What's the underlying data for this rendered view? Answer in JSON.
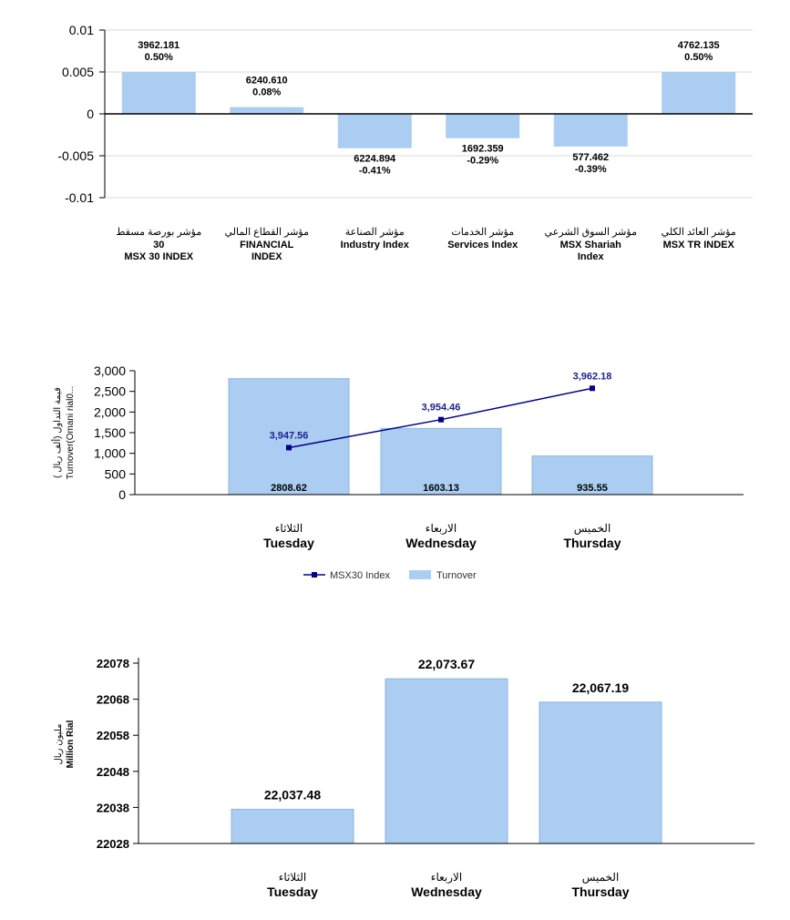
{
  "colors": {
    "bar": "#aacdf1",
    "bar_edge": "#8fb6dd",
    "line": "#00008b",
    "grid": "#d9d9d9",
    "axis": "#000000"
  },
  "chart_data": [
    {
      "type": "bar",
      "ylim": [
        -0.01,
        0.01
      ],
      "yticks": [
        "0.01",
        "0.005",
        "0",
        "-0.005",
        "-0.01"
      ],
      "grid": true,
      "categories": [
        {
          "ar": "مؤشر بورصة مسقط",
          "lines": [
            "30",
            "MSX 30 INDEX"
          ]
        },
        {
          "ar": "مؤشر القطاع المالي",
          "lines": [
            "FINANCIAL",
            "INDEX"
          ]
        },
        {
          "ar": "مؤشر الصناعة",
          "lines": [
            "Industry Index"
          ]
        },
        {
          "ar": "مؤشر الخدمات",
          "lines": [
            "Services Index"
          ]
        },
        {
          "ar": "مؤشر السوق الشرعي",
          "lines": [
            "MSX Shariah",
            "Index"
          ]
        },
        {
          "ar": "مؤشر العائد الكلي",
          "lines": [
            "MSX TR INDEX"
          ]
        }
      ],
      "values": [
        0.005,
        0.0008,
        -0.0041,
        -0.0029,
        -0.0039,
        0.005
      ],
      "data_labels": [
        [
          "3962.181",
          "0.50%"
        ],
        [
          "6240.610",
          "0.08%"
        ],
        [
          "6224.894",
          "-0.41%"
        ],
        [
          "1692.359",
          "-0.29%"
        ],
        [
          "577.462",
          "-0.39%"
        ],
        [
          "4762.135",
          "0.50%"
        ]
      ]
    },
    {
      "type": "bar",
      "ylim": [
        0,
        3000
      ],
      "yticks": [
        "3,000",
        "2,500",
        "2,000",
        "1,500",
        "1,000",
        "500",
        "0"
      ],
      "ylabel_ar": "( قيمة التداول (ألف ريال",
      "ylabel_en": "Turnover(Omani rial0...",
      "categories": [
        {
          "ar": "الثلاثاء",
          "en": "Tuesday"
        },
        {
          "ar": "الاربعاء",
          "en": "Wednesday"
        },
        {
          "ar": "الخميس",
          "en": "Thursday"
        }
      ],
      "series": [
        {
          "name": "Turnover",
          "type": "bar",
          "values": [
            2808.62,
            1603.13,
            935.55
          ],
          "labels": [
            "2808.62",
            "1603.13",
            "935.55"
          ]
        },
        {
          "name": "MSX30 Index",
          "type": "line",
          "values": [
            3947.56,
            3954.46,
            3962.18
          ],
          "labels": [
            "3,947.56",
            "3,954.46",
            "3,962.18"
          ],
          "ylim": [
            3936,
            3966.5
          ]
        }
      ],
      "legend": [
        {
          "name": "MSX30 Index",
          "kind": "line"
        },
        {
          "name": "Turnover",
          "kind": "bar"
        }
      ],
      "legend_position": "bottom"
    },
    {
      "type": "bar",
      "ylim": [
        22028,
        22078
      ],
      "yticks": [
        "22078",
        "22068",
        "22058",
        "22048",
        "22038",
        "22028"
      ],
      "ylabel_ar": "مليون ريال",
      "ylabel_en": "Million Rial",
      "categories": [
        {
          "ar": "الثلاثاء",
          "en": "Tuesday"
        },
        {
          "ar": "الاربعاء",
          "en": "Wednesday"
        },
        {
          "ar": "الخميس",
          "en": "Thursday"
        }
      ],
      "values": [
        22037.48,
        22073.67,
        22067.19
      ],
      "labels": [
        "22,037.48",
        "22,073.67",
        "22,067.19"
      ]
    }
  ]
}
